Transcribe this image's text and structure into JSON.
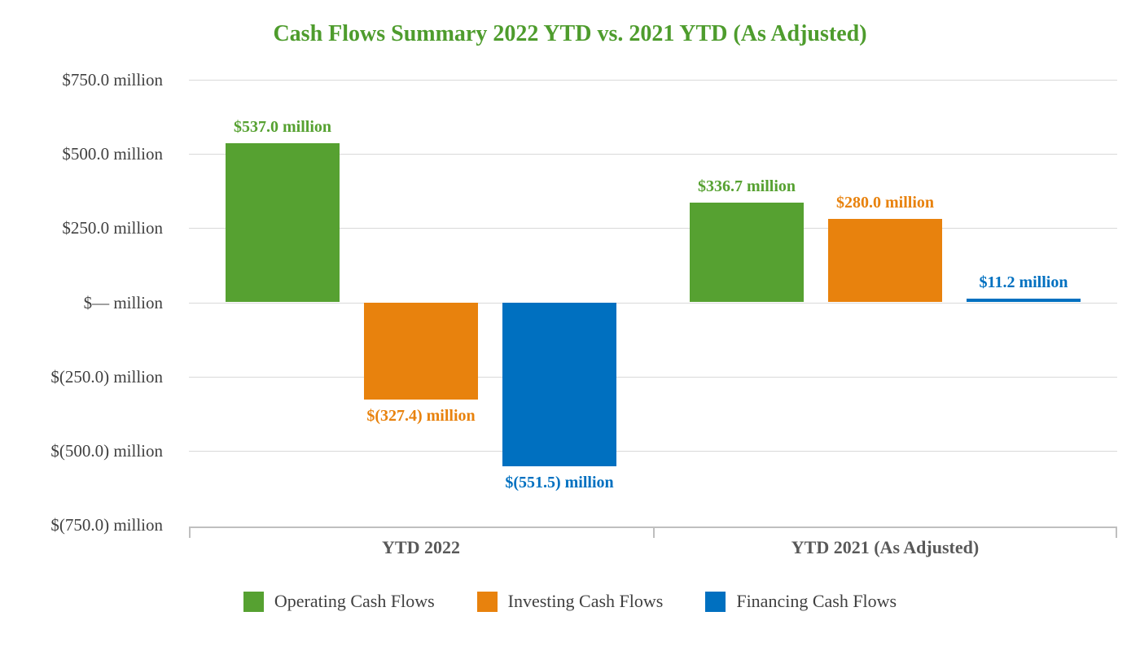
{
  "title": "Cash Flows Summary 2022 YTD vs. 2021 YTD (As Adjusted)",
  "colors": {
    "title": "#4E9C2D",
    "operating": "#56A131",
    "investing": "#E8820D",
    "financing": "#0070C0",
    "axis_text": "#404040",
    "category_text": "#595959",
    "gridline": "#D9D9D9",
    "axis_line": "#BFBFBF"
  },
  "chart_data": {
    "type": "bar",
    "title": "Cash Flows Summary 2022 YTD vs. 2021 YTD (As Adjusted)",
    "categories": [
      "YTD 2022",
      "YTD 2021 (As Adjusted)"
    ],
    "series": [
      {
        "name": "Operating Cash Flows",
        "color_key": "operating",
        "values": [
          537.0,
          336.7
        ],
        "labels": [
          "$537.0 million",
          "$336.7 million"
        ]
      },
      {
        "name": "Investing Cash Flows",
        "color_key": "investing",
        "values": [
          -327.4,
          280.0
        ],
        "labels": [
          "$(327.4) million",
          "$280.0 million"
        ]
      },
      {
        "name": "Financing Cash Flows",
        "color_key": "financing",
        "values": [
          -551.5,
          11.2
        ],
        "labels": [
          "$(551.5) million",
          "$11.2 million"
        ]
      }
    ],
    "ylim": [
      -750,
      750
    ],
    "ytick_step": 250,
    "ytick_labels": [
      "$750.0 million",
      "$500.0 million",
      "$250.0 million",
      "$— million",
      "$(250.0) million",
      "$(500.0) million",
      "$(750.0) million"
    ],
    "unit": "million USD",
    "grid": true,
    "legend_position": "bottom"
  },
  "legend": {
    "items": [
      {
        "label": "Operating Cash Flows",
        "color_key": "operating"
      },
      {
        "label": "Investing Cash Flows",
        "color_key": "investing"
      },
      {
        "label": "Financing Cash Flows",
        "color_key": "financing"
      }
    ]
  }
}
